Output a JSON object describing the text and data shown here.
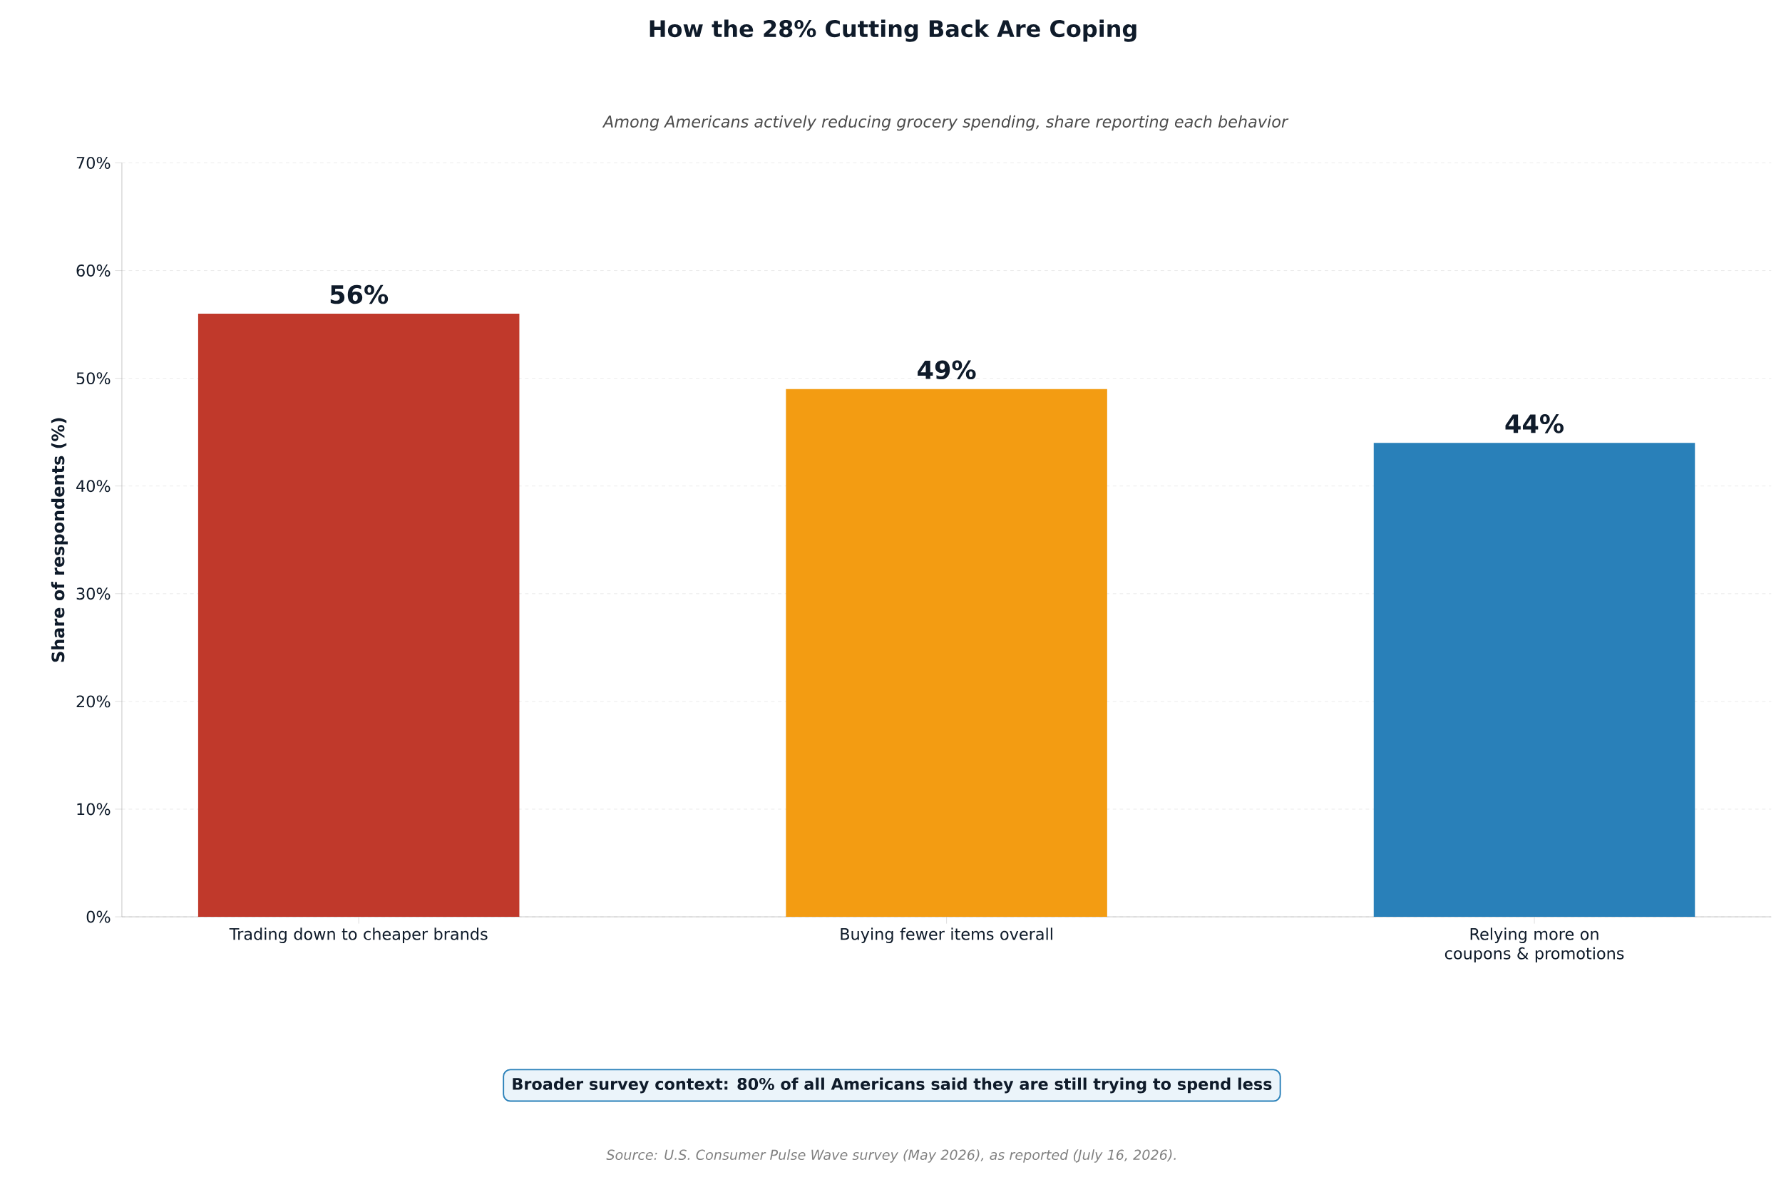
{
  "chart_data": {
    "type": "bar",
    "title": "How the 28% Cutting Back Are Coping",
    "subtitle": "Among Americans actively reducing grocery spending, share reporting each behavior",
    "ylabel": "Share of respondents (%)",
    "categories": [
      "Trading down to cheaper brands",
      "Buying fewer items overall",
      "Relying more on coupons & promotions"
    ],
    "values": [
      56,
      49,
      44
    ],
    "colors": [
      "#c0392b",
      "#f39c12",
      "#2980b9"
    ],
    "value_labels": [
      "56%",
      "49%",
      "44%"
    ],
    "ylim": [
      0,
      70
    ],
    "yticks": [
      {
        "value": 0,
        "label": "0%"
      },
      {
        "value": 10,
        "label": "10%"
      },
      {
        "value": 20,
        "label": "20%"
      },
      {
        "value": 30,
        "label": "30%"
      },
      {
        "value": 40,
        "label": "40%"
      },
      {
        "value": 50,
        "label": "50%"
      },
      {
        "value": 60,
        "label": "60%"
      },
      {
        "value": 70,
        "label": "70%"
      }
    ],
    "grid": "y",
    "annotations": [
      "Broader survey context: 80% of all Americans said they are still trying to spend less",
      "Source: U.S. Consumer Pulse Wave survey (May 2026), as reported (July 16, 2026)."
    ]
  }
}
